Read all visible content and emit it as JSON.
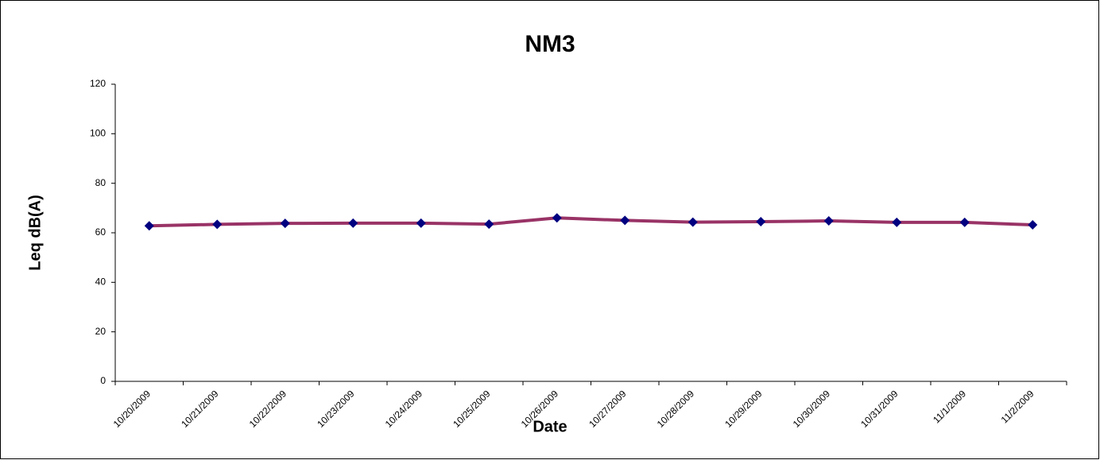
{
  "chart_data": {
    "type": "line",
    "title": "NM3",
    "x_label": "Date",
    "y_label": "Leq dB(A)",
    "categories": [
      "10/20/2009",
      "10/21/2009",
      "10/22/2009",
      "10/23/2009",
      "10/24/2009",
      "10/25/2009",
      "10/26/2009",
      "10/27/2009",
      "10/28/2009",
      "10/29/2009",
      "10/30/2009",
      "10/31/2009",
      "11/1/2009",
      "11/2/2009"
    ],
    "series": [
      {
        "name": "Leq",
        "color": "#993366",
        "marker_color": "#000080",
        "values": [
          62.8,
          63.4,
          63.8,
          63.9,
          63.9,
          63.5,
          66.0,
          65.0,
          64.3,
          64.5,
          64.8,
          64.2,
          64.2,
          63.2
        ]
      }
    ],
    "ylim": [
      0,
      120
    ],
    "yticks": [
      0,
      20,
      40,
      60,
      80,
      100,
      120
    ],
    "grid": false,
    "legend": false
  }
}
